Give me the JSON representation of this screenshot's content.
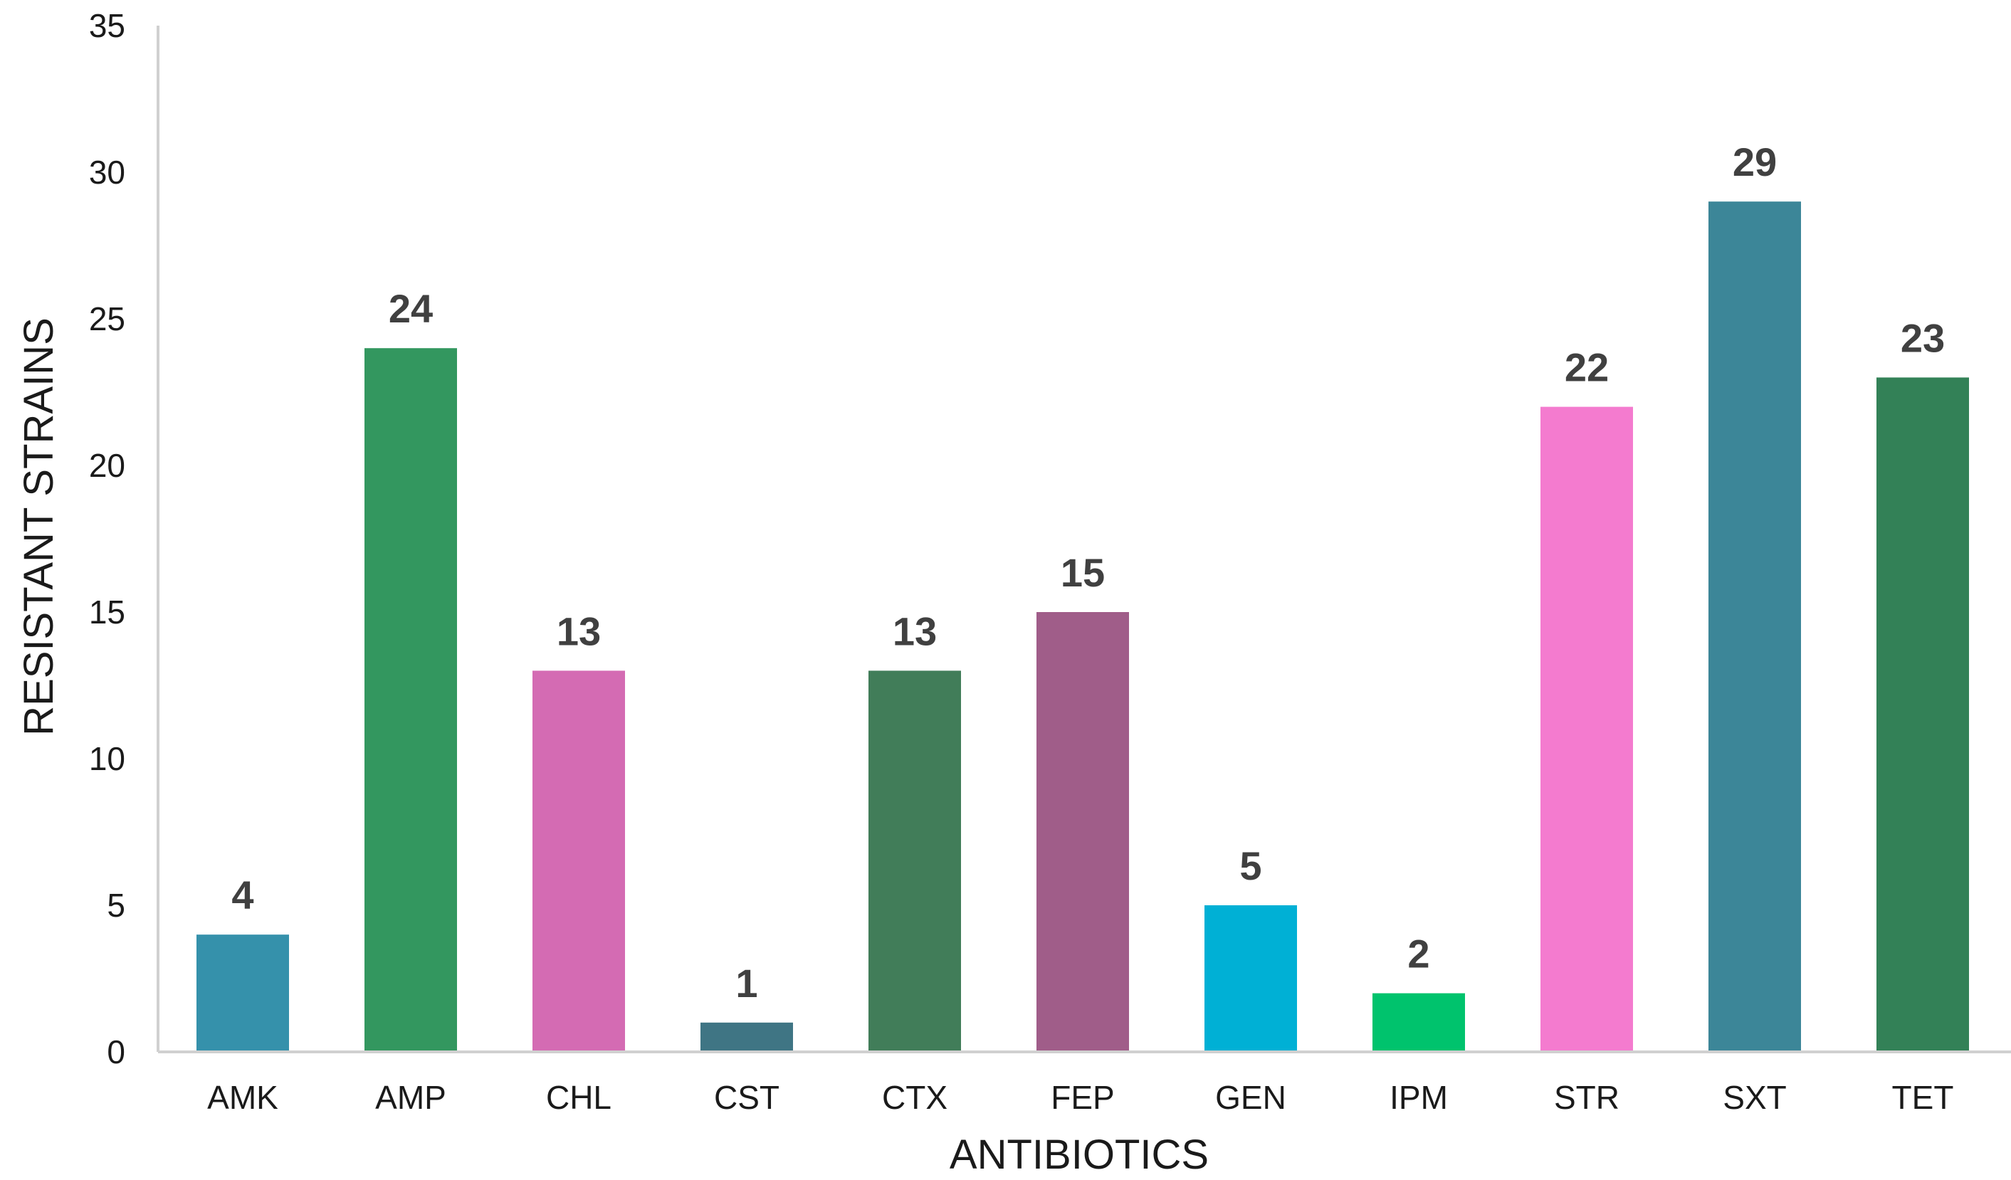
{
  "chart_data": {
    "type": "bar",
    "title": "",
    "xlabel": "ANTIBIOTICS",
    "ylabel": "RESISTANT STRAINS",
    "ylim": [
      0,
      35
    ],
    "yticks": [
      0,
      5,
      10,
      15,
      20,
      25,
      30,
      35
    ],
    "grid": false,
    "legend": "none",
    "categories": [
      "AMK",
      "AMP",
      "CHL",
      "CST",
      "CTX",
      "FEP",
      "GEN",
      "IPM",
      "STR",
      "SXT",
      "TET"
    ],
    "values": [
      4,
      24,
      13,
      1,
      13,
      15,
      5,
      2,
      22,
      29,
      23
    ],
    "colors": [
      "#3591AB",
      "#33975F",
      "#D46BB3",
      "#3F7584",
      "#417D59",
      "#A05D89",
      "#00B0D5",
      "#00C36D",
      "#F47BCF",
      "#3C8698",
      "#338157"
    ]
  }
}
